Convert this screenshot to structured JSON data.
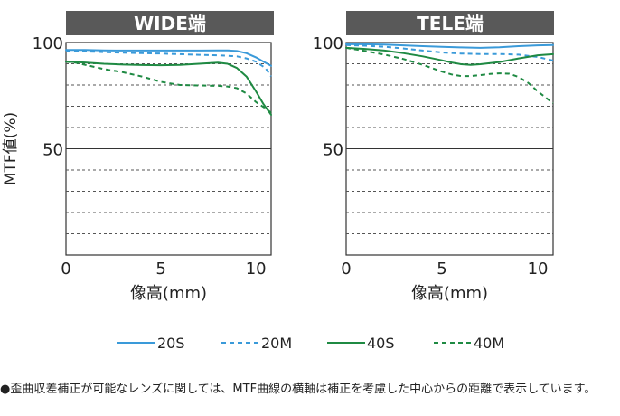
{
  "chart_data": [
    {
      "type": "line",
      "title": "WIDE端",
      "xlabel": "像高(mm)",
      "ylabel": "MTF値(%)",
      "xlim": [
        0,
        10.8
      ],
      "ylim": [
        0,
        100
      ],
      "xticks": [
        {
          "v": 0,
          "label": "0"
        },
        {
          "v": 5,
          "label": "5"
        },
        {
          "v": 10,
          "label": "10"
        }
      ],
      "yticks": [
        {
          "v": 100,
          "label": "100"
        },
        {
          "v": 50,
          "label": "50"
        }
      ],
      "grid": {
        "dashed_y": [
          90,
          80,
          70,
          60,
          40,
          30,
          20,
          10
        ]
      },
      "series": [
        {
          "name": "20S",
          "color": "#3a9ad9",
          "dash": "solid",
          "x": [
            0,
            1,
            2,
            3,
            4,
            5,
            6,
            7,
            8,
            8.5,
            9,
            9.5,
            10,
            10.4,
            10.8
          ],
          "y": [
            96.5,
            96.5,
            96.3,
            96.2,
            96.2,
            96.2,
            96.2,
            96.2,
            96.3,
            96.3,
            96,
            95,
            93,
            91,
            89
          ]
        },
        {
          "name": "20M",
          "color": "#3a9ad9",
          "dash": "dashed",
          "x": [
            0,
            1,
            2,
            3,
            4,
            5,
            6,
            7,
            8,
            9,
            9.5,
            10,
            10.5,
            10.8
          ],
          "y": [
            96,
            95.8,
            95.5,
            95.2,
            95,
            94.8,
            94.5,
            94.2,
            94,
            93.5,
            92.5,
            91,
            88,
            84
          ]
        },
        {
          "name": "40S",
          "color": "#1f8a43",
          "dash": "solid",
          "x": [
            0,
            1,
            2,
            3,
            4,
            5,
            6,
            7,
            8,
            8.5,
            9,
            9.5,
            10,
            10.4,
            10.8
          ],
          "y": [
            91,
            90.6,
            90,
            89.6,
            89.4,
            89.3,
            89.5,
            90,
            90.5,
            90,
            88,
            84,
            77,
            71,
            66
          ]
        },
        {
          "name": "40M",
          "color": "#1f8a43",
          "dash": "dashed",
          "x": [
            0,
            0.5,
            1,
            1.5,
            2,
            3,
            4,
            5,
            6,
            7,
            8,
            8.5,
            9,
            9.5,
            10,
            10.5,
            10.8
          ],
          "y": [
            91,
            90.5,
            89.5,
            88.5,
            87.5,
            86,
            84,
            81.5,
            80,
            79.8,
            79.6,
            79.3,
            78.5,
            76,
            72,
            69,
            67
          ]
        }
      ]
    },
    {
      "type": "line",
      "title": "TELE端",
      "xlabel": "像高(mm)",
      "ylabel": "",
      "xlim": [
        0,
        10.8
      ],
      "ylim": [
        0,
        100
      ],
      "xticks": [
        {
          "v": 0,
          "label": "0"
        },
        {
          "v": 5,
          "label": "5"
        },
        {
          "v": 10,
          "label": "10"
        }
      ],
      "yticks": [
        {
          "v": 100,
          "label": "100"
        },
        {
          "v": 50,
          "label": "50"
        }
      ],
      "grid": {
        "dashed_y": [
          90,
          80,
          70,
          60,
          40,
          30,
          20,
          10
        ]
      },
      "series": [
        {
          "name": "20S",
          "color": "#3a9ad9",
          "dash": "solid",
          "x": [
            0,
            1,
            2,
            3,
            4,
            5,
            6,
            7,
            8,
            9,
            10,
            10.8
          ],
          "y": [
            99.2,
            99.2,
            99,
            98.7,
            98.3,
            98,
            97.7,
            97.5,
            97.8,
            98.3,
            98.7,
            98.8
          ]
        },
        {
          "name": "20M",
          "color": "#3a9ad9",
          "dash": "dashed",
          "x": [
            0,
            1,
            2,
            3,
            4,
            5,
            6,
            7,
            8,
            9,
            10,
            10.8
          ],
          "y": [
            98.8,
            98.5,
            98,
            97.2,
            96.2,
            95.3,
            94.8,
            94.6,
            94.6,
            94.3,
            93.2,
            91.5
          ]
        },
        {
          "name": "40S",
          "color": "#1f8a43",
          "dash": "solid",
          "x": [
            0,
            1,
            2,
            3,
            4,
            5,
            5.5,
            6,
            6.5,
            7,
            8,
            9,
            10,
            10.8
          ],
          "y": [
            97.5,
            97,
            96.2,
            95,
            93.5,
            91.6,
            90.6,
            89.8,
            89.5,
            89.8,
            90.8,
            92.5,
            94,
            94.5
          ]
        },
        {
          "name": "40M",
          "color": "#1f8a43",
          "dash": "dashed",
          "x": [
            0,
            1,
            2,
            3,
            4,
            5,
            5.5,
            6,
            6.5,
            7,
            7.5,
            8,
            8.5,
            9,
            9.5,
            10,
            10.5,
            10.8
          ],
          "y": [
            97.5,
            96,
            94.3,
            92.2,
            89.5,
            86.3,
            85,
            84.2,
            84.2,
            84.7,
            85.2,
            85.5,
            85.3,
            83.8,
            81,
            77,
            73.5,
            71.5
          ]
        }
      ]
    }
  ],
  "legend": {
    "items": [
      {
        "name": "20S",
        "color": "#3a9ad9",
        "dash": "solid"
      },
      {
        "name": "20M",
        "color": "#3a9ad9",
        "dash": "dashed"
      },
      {
        "name": "40S",
        "color": "#1f8a43",
        "dash": "solid"
      },
      {
        "name": "40M",
        "color": "#1f8a43",
        "dash": "dashed"
      }
    ]
  },
  "note": {
    "bullet": "●",
    "text": "歪曲収差補正が可能なレンズに関しては、MTF曲線の横軸は補正を考慮した中心からの距離で表示しています。"
  }
}
